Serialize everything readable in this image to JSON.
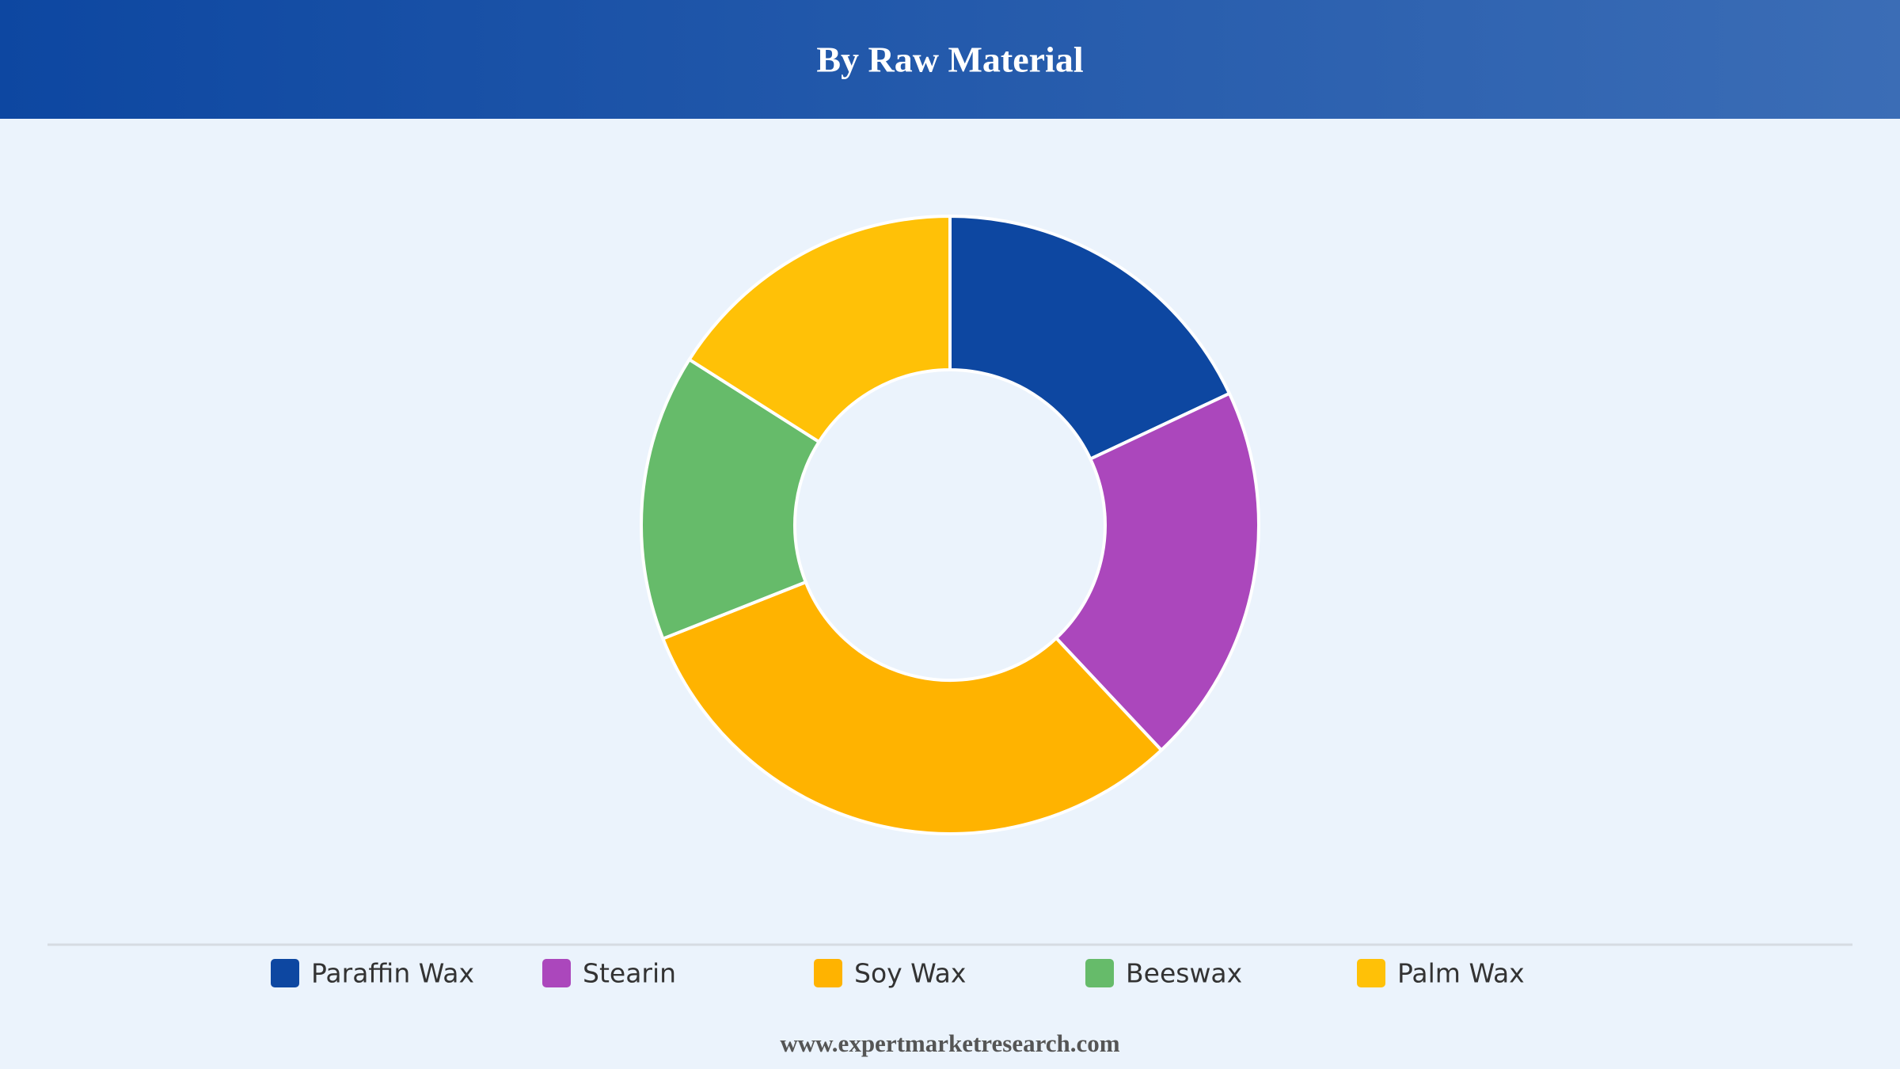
{
  "chart_data": {
    "type": "pie",
    "title": "By Raw Material",
    "categories": [
      "Paraffin Wax",
      "Stearin",
      "Soy Wax",
      "Beeswax",
      "Palm Wax"
    ],
    "values": [
      18,
      20,
      31,
      15,
      16
    ],
    "colors": [
      "#0d47a1",
      "#ab47bc",
      "#ffb300",
      "#66bb6a",
      "#ffc107"
    ],
    "donut": true,
    "legend": "bottom"
  },
  "footer": "www.expertmarketresearch.com"
}
